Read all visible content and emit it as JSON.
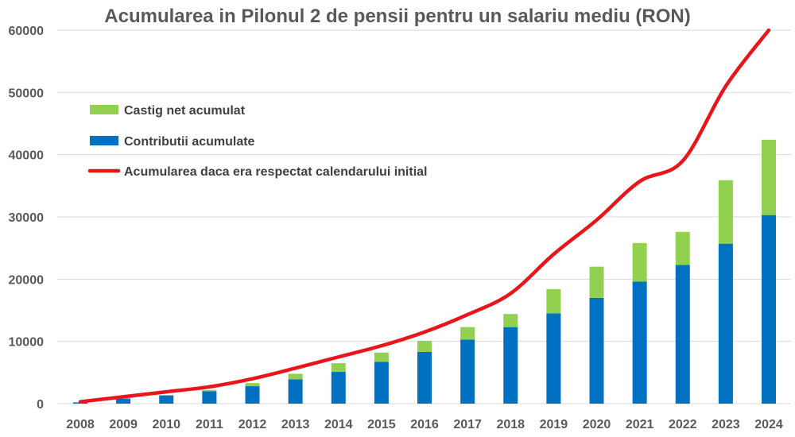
{
  "chart_data": {
    "type": "bar",
    "title": "Acumularea in Pilonul 2 de pensii pentru un salariu mediu (RON)",
    "categories": [
      "2008",
      "2009",
      "2010",
      "2011",
      "2012",
      "2013",
      "2014",
      "2015",
      "2016",
      "2017",
      "2018",
      "2019",
      "2020",
      "2021",
      "2022",
      "2023",
      "2024"
    ],
    "stacked": true,
    "series": [
      {
        "name": "Contributii acumulate",
        "kind": "bar",
        "color": "#0070c0",
        "values": [
          200,
          800,
          1300,
          2000,
          2800,
          3900,
          5100,
          6700,
          8300,
          10300,
          12300,
          14500,
          17000,
          19600,
          22300,
          25700,
          30300
        ]
      },
      {
        "name": "Castig net acumulat",
        "kind": "bar",
        "color": "#92d050",
        "values": [
          0,
          100,
          100,
          200,
          500,
          900,
          1400,
          1500,
          1800,
          2000,
          2100,
          3900,
          5000,
          6200,
          5300,
          10200,
          12100
        ]
      },
      {
        "name": "Acumularea daca era respectat calendarului initial",
        "kind": "line",
        "color": "#e8161a",
        "values": [
          300,
          1100,
          1900,
          2700,
          4000,
          5700,
          7500,
          9300,
          11500,
          14300,
          17700,
          24000,
          29500,
          35700,
          39000,
          51000,
          60000
        ]
      }
    ],
    "ylim": [
      0,
      60000
    ],
    "yticks": [
      "0",
      "10000",
      "20000",
      "30000",
      "40000",
      "50000",
      "60000"
    ],
    "grid": true,
    "legend": {
      "position": "top-left",
      "order": [
        "Castig net acumulat",
        "Contributii acumulate",
        "Acumularea daca era respectat calendarului initial"
      ]
    }
  }
}
